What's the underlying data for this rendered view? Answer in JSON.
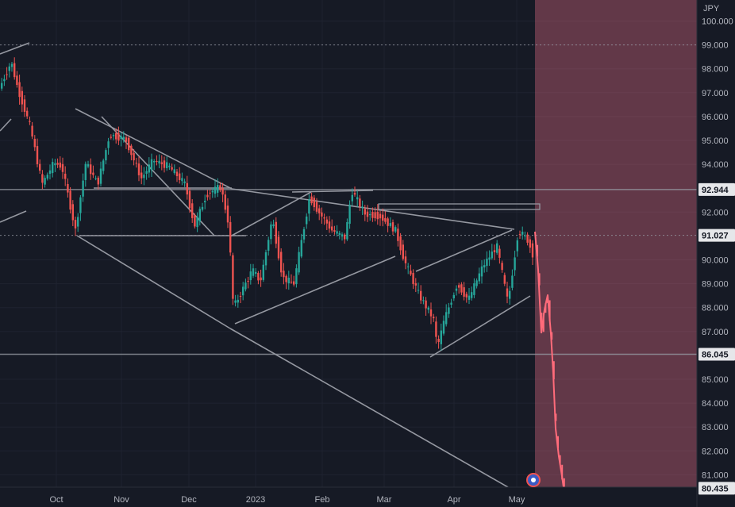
{
  "chart_data": {
    "type": "candlestick",
    "currency_label": "JPY",
    "y_ticks": [
      "100.000",
      "99.000",
      "98.000",
      "97.000",
      "96.000",
      "95.000",
      "94.000",
      "92.000",
      "90.000",
      "89.000",
      "88.000",
      "87.000",
      "85.000",
      "84.000",
      "83.000",
      "82.000",
      "81.000"
    ],
    "y_tick_values": [
      100,
      99,
      98,
      97,
      96,
      95,
      94,
      92,
      90,
      89,
      88,
      87,
      85,
      84,
      83,
      82,
      81
    ],
    "ylim": [
      80.25,
      100.45
    ],
    "x_ticks": [
      "Oct",
      "Nov",
      "Dec",
      "2023",
      "Feb",
      "Mar",
      "Apr",
      "May"
    ],
    "price_labels": [
      {
        "text": "92.944",
        "value": 92.944
      },
      {
        "text": "91.027",
        "value": 91.027
      },
      {
        "text": "86.045",
        "value": 86.045
      },
      {
        "text": "80.435",
        "value": 80.435
      }
    ],
    "horizontal_levels": [
      99.0,
      92.944,
      91.027,
      86.045
    ],
    "dotted_levels": [
      99.0,
      91.027
    ],
    "shaded_zone": {
      "from": "May",
      "color": "#f2738a",
      "opacity": 0.35
    },
    "colors": {
      "up": "#26a69a",
      "down": "#ef5350",
      "lines": "#9598a1",
      "background": "#161a25",
      "badge_bg": "#e6e7ea",
      "badge_text": "#131722"
    }
  }
}
